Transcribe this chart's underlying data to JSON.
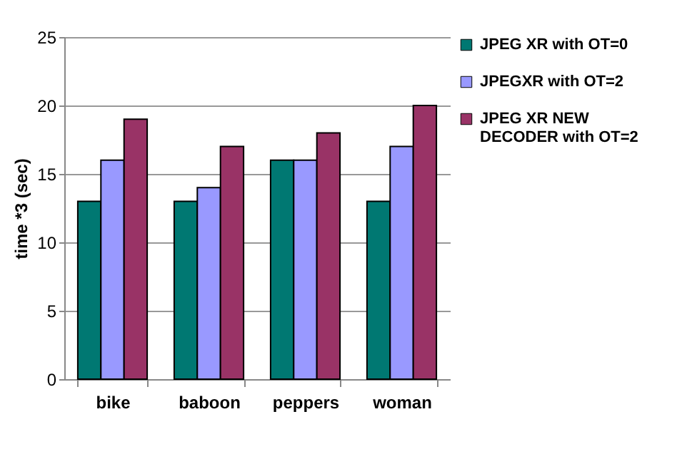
{
  "chart_data": {
    "type": "bar",
    "ylabel": "time *3 (sec)",
    "categories": [
      "bike",
      "baboon",
      "peppers",
      "woman"
    ],
    "series": [
      {
        "name": "JPEG XR with OT=0",
        "color": "#007872",
        "values": [
          13,
          13,
          16,
          13
        ]
      },
      {
        "name": "JPEGXR with OT=2",
        "color": "#9999ff",
        "values": [
          16,
          14,
          16,
          17
        ]
      },
      {
        "name": "JPEG XR NEW DECODER with OT=2",
        "color": "#993366",
        "values": [
          19,
          17,
          18,
          20
        ]
      }
    ],
    "ylim": [
      0,
      25
    ],
    "yticks": [
      0,
      5,
      10,
      15,
      20,
      25
    ],
    "grid": "y",
    "legend": "right"
  }
}
